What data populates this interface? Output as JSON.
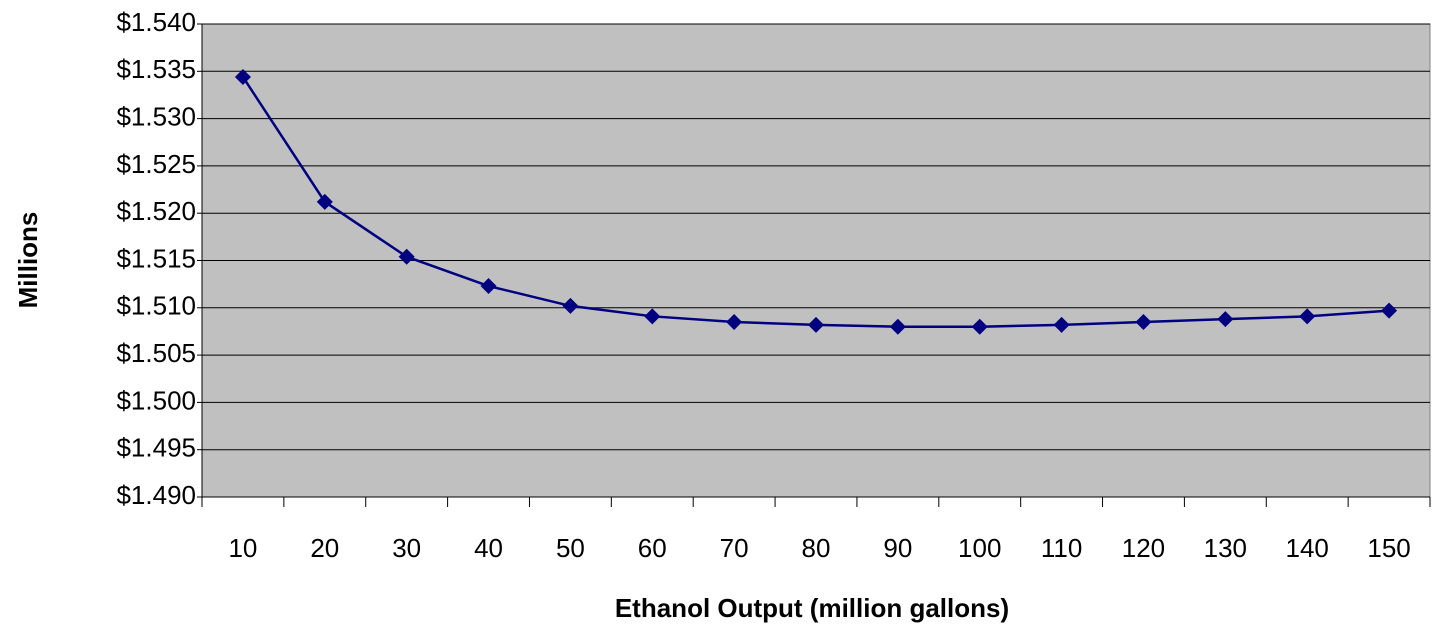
{
  "chart_data": {
    "type": "line",
    "y_label": "Millions",
    "x_label": "Ethanol Output (million gallons)",
    "categories": [
      "10",
      "20",
      "30",
      "40",
      "50",
      "60",
      "70",
      "80",
      "90",
      "100",
      "110",
      "120",
      "130",
      "140",
      "150"
    ],
    "series": [
      {
        "color": "#000080",
        "values": [
          1.5344,
          1.5212,
          1.5154,
          1.5123,
          1.5102,
          1.5091,
          1.5085,
          1.5082,
          1.508,
          1.508,
          1.5082,
          1.5085,
          1.5088,
          1.5091,
          1.5097
        ]
      }
    ],
    "ylim": [
      1.49,
      1.54
    ],
    "yticks": [
      {
        "value": 1.49,
        "label": "$1.490"
      },
      {
        "value": 1.495,
        "label": "$1.495"
      },
      {
        "value": 1.5,
        "label": "$1.500"
      },
      {
        "value": 1.505,
        "label": "$1.505"
      },
      {
        "value": 1.51,
        "label": "$1.510"
      },
      {
        "value": 1.515,
        "label": "$1.515"
      },
      {
        "value": 1.52,
        "label": "$1.520"
      },
      {
        "value": 1.525,
        "label": "$1.525"
      },
      {
        "value": 1.53,
        "label": "$1.530"
      },
      {
        "value": 1.535,
        "label": "$1.535"
      },
      {
        "value": 1.54,
        "label": "$1.540"
      }
    ],
    "grid": true,
    "plot_background": "#c0c0c0"
  }
}
